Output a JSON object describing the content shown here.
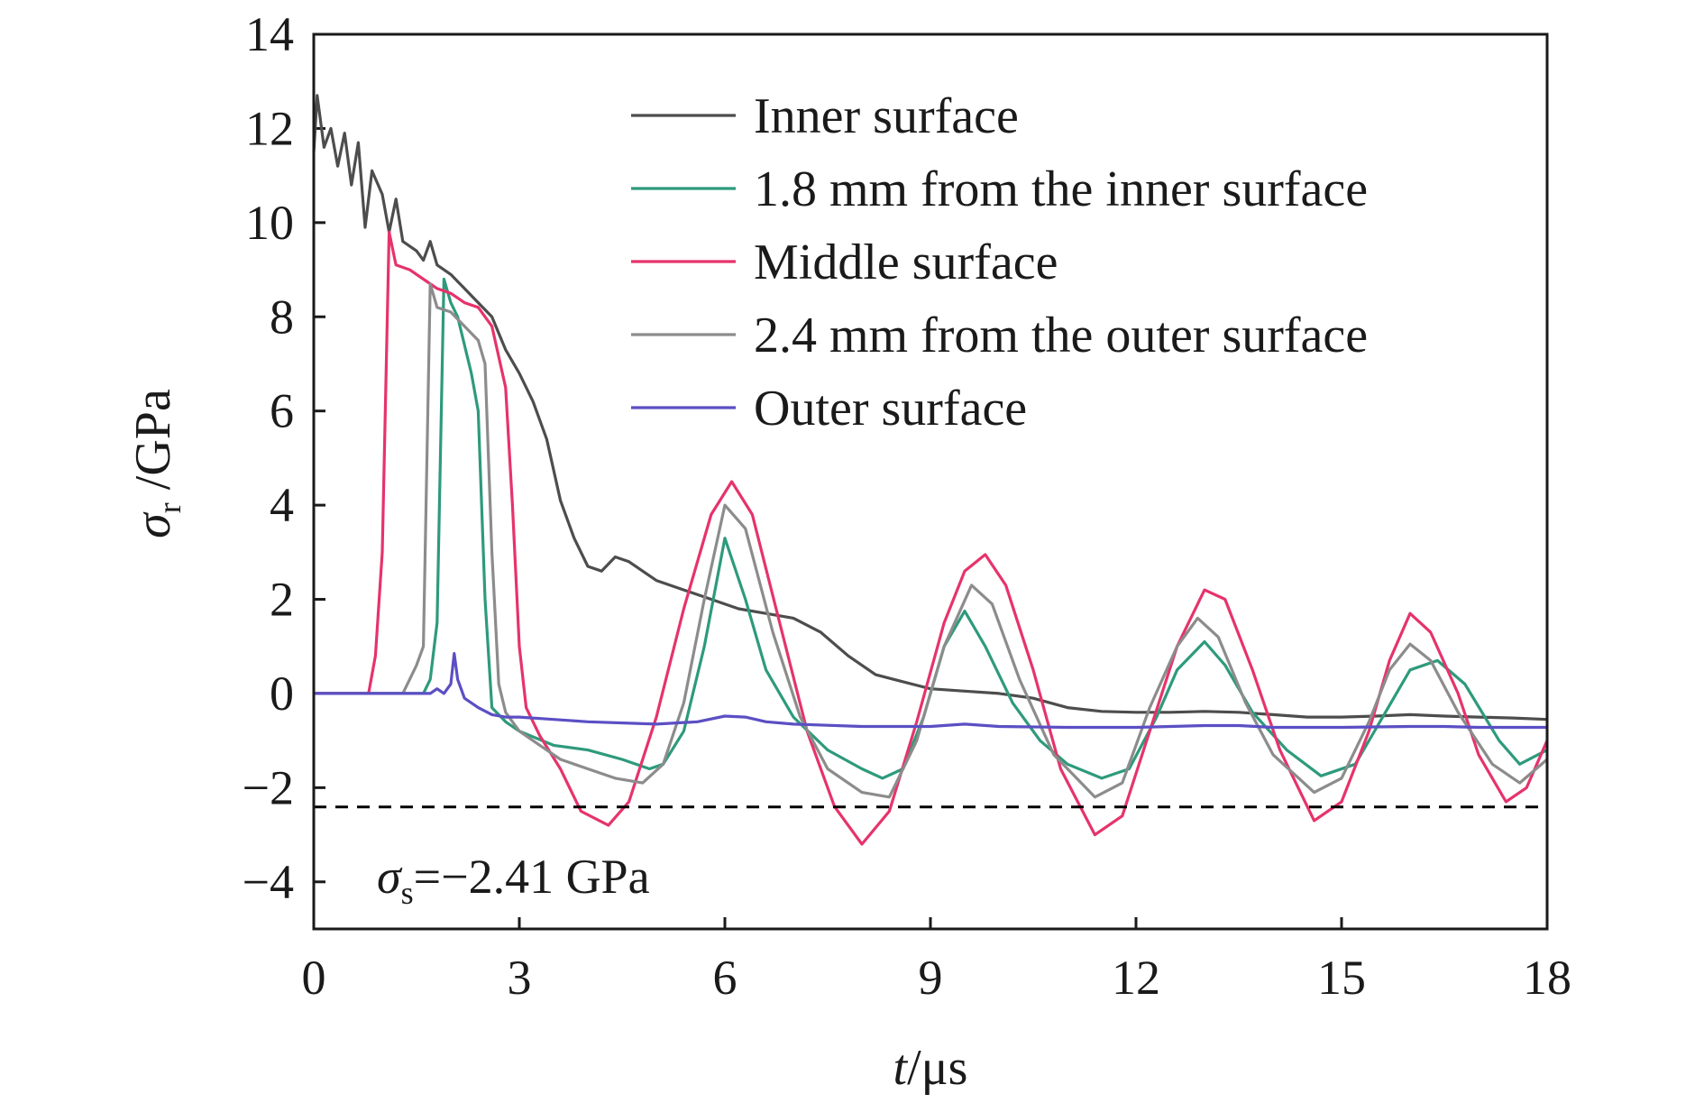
{
  "chart_data": {
    "type": "line",
    "xlabel": {
      "symbol": "t",
      "unit": "/μs"
    },
    "ylabel": {
      "symbol": "σ",
      "subscript": "r",
      "unit": " /GPa"
    },
    "xlim": [
      0,
      18
    ],
    "ylim": [
      -5,
      14
    ],
    "xticks": [
      0,
      3,
      6,
      9,
      12,
      15,
      18
    ],
    "yticks": [
      -4,
      -2,
      0,
      2,
      4,
      6,
      8,
      10,
      12,
      14
    ],
    "ytick_labels": [
      "−4",
      "−2",
      "0",
      "2",
      "4",
      "6",
      "8",
      "10",
      "12",
      "14"
    ],
    "grid": false,
    "legend_position": "top-right",
    "series": [
      {
        "name": "Inner surface",
        "color": "#4d4d4d",
        "x": [
          0,
          0.05,
          0.15,
          0.25,
          0.35,
          0.45,
          0.55,
          0.65,
          0.75,
          0.85,
          1.0,
          1.1,
          1.2,
          1.3,
          1.4,
          1.5,
          1.6,
          1.7,
          1.8,
          1.9,
          2.0,
          2.2,
          2.4,
          2.6,
          2.8,
          3.0,
          3.2,
          3.4,
          3.6,
          3.8,
          4.0,
          4.2,
          4.4,
          4.6,
          4.8,
          5.0,
          5.4,
          5.8,
          6.2,
          6.6,
          7.0,
          7.4,
          7.8,
          8.2,
          8.6,
          9.0,
          9.5,
          10.0,
          10.5,
          11.0,
          11.5,
          12.0,
          12.5,
          13.0,
          13.5,
          14.0,
          14.5,
          15.0,
          15.5,
          16.0,
          16.5,
          17.0,
          17.5,
          18.0
        ],
        "y": [
          11.5,
          12.7,
          11.6,
          12.0,
          11.2,
          11.9,
          10.8,
          11.7,
          9.9,
          11.1,
          10.6,
          9.8,
          10.5,
          9.6,
          9.5,
          9.4,
          9.2,
          9.6,
          9.1,
          9.0,
          8.9,
          8.6,
          8.3,
          8.0,
          7.3,
          6.8,
          6.2,
          5.4,
          4.1,
          3.3,
          2.7,
          2.6,
          2.9,
          2.8,
          2.6,
          2.4,
          2.2,
          2.0,
          1.8,
          1.7,
          1.6,
          1.3,
          0.8,
          0.4,
          0.25,
          0.1,
          0.05,
          0.0,
          -0.1,
          -0.3,
          -0.38,
          -0.4,
          -0.4,
          -0.38,
          -0.4,
          -0.45,
          -0.5,
          -0.5,
          -0.48,
          -0.45,
          -0.48,
          -0.5,
          -0.52,
          -0.55
        ]
      },
      {
        "name": "1.8 mm from the inner surface",
        "color": "#2e9a7c",
        "x": [
          0,
          1.6,
          1.7,
          1.8,
          1.9,
          2.0,
          2.1,
          2.2,
          2.3,
          2.4,
          2.5,
          2.6,
          2.8,
          3.0,
          3.5,
          4.0,
          4.5,
          4.9,
          5.1,
          5.4,
          5.7,
          6.0,
          6.3,
          6.6,
          7.0,
          7.5,
          8.0,
          8.3,
          8.6,
          8.9,
          9.2,
          9.5,
          9.8,
          10.2,
          10.6,
          11.0,
          11.5,
          11.9,
          12.3,
          12.6,
          13.0,
          13.3,
          13.7,
          14.2,
          14.7,
          15.2,
          15.6,
          16.0,
          16.4,
          16.8,
          17.3,
          17.6,
          18.0
        ],
        "y": [
          0,
          0,
          0.3,
          1.5,
          8.8,
          8.3,
          8.0,
          7.4,
          6.8,
          6.0,
          2.0,
          -0.3,
          -0.6,
          -0.8,
          -1.1,
          -1.2,
          -1.4,
          -1.6,
          -1.5,
          -0.8,
          1.0,
          3.3,
          2.0,
          0.5,
          -0.5,
          -1.2,
          -1.6,
          -1.8,
          -1.6,
          -0.5,
          1.0,
          1.75,
          1.0,
          -0.2,
          -1.0,
          -1.5,
          -1.8,
          -1.6,
          -0.5,
          0.5,
          1.1,
          0.6,
          -0.4,
          -1.2,
          -1.75,
          -1.5,
          -0.5,
          0.5,
          0.7,
          0.2,
          -1.0,
          -1.5,
          -1.2
        ]
      },
      {
        "name": "Middle surface",
        "color": "#e6336b",
        "x": [
          0,
          0.8,
          0.9,
          1.0,
          1.1,
          1.2,
          1.4,
          1.6,
          1.8,
          2.0,
          2.2,
          2.4,
          2.6,
          2.8,
          2.9,
          3.0,
          3.1,
          3.3,
          3.6,
          3.9,
          4.3,
          4.6,
          5.0,
          5.4,
          5.8,
          6.1,
          6.4,
          6.8,
          7.2,
          7.6,
          8.0,
          8.4,
          8.8,
          9.2,
          9.5,
          9.8,
          10.1,
          10.5,
          10.9,
          11.4,
          11.8,
          12.2,
          12.6,
          13.0,
          13.3,
          13.7,
          14.1,
          14.6,
          15.0,
          15.4,
          15.7,
          16.0,
          16.3,
          16.7,
          17.0,
          17.4,
          17.7,
          18.0
        ],
        "y": [
          0,
          0,
          0.8,
          3.0,
          9.8,
          9.1,
          9.0,
          8.8,
          8.6,
          8.5,
          8.3,
          8.2,
          7.8,
          6.5,
          4.0,
          1.0,
          -0.3,
          -0.9,
          -1.6,
          -2.5,
          -2.8,
          -2.3,
          -0.5,
          1.8,
          3.8,
          4.5,
          3.8,
          1.5,
          -0.8,
          -2.4,
          -3.2,
          -2.5,
          -0.6,
          1.5,
          2.6,
          2.95,
          2.3,
          0.5,
          -1.6,
          -3.0,
          -2.6,
          -0.8,
          1.0,
          2.2,
          2.0,
          0.5,
          -1.2,
          -2.7,
          -2.3,
          -0.8,
          0.7,
          1.7,
          1.3,
          0.0,
          -1.3,
          -2.3,
          -2.0,
          -1.0
        ]
      },
      {
        "name": "2.4 mm from the outer surface",
        "color": "#8c8c8c",
        "x": [
          0,
          1.3,
          1.4,
          1.5,
          1.6,
          1.7,
          1.8,
          2.0,
          2.2,
          2.4,
          2.5,
          2.6,
          2.7,
          2.8,
          3.0,
          3.3,
          3.6,
          4.0,
          4.4,
          4.8,
          5.1,
          5.4,
          5.7,
          6.0,
          6.3,
          6.7,
          7.1,
          7.5,
          8.0,
          8.4,
          8.8,
          9.2,
          9.6,
          9.9,
          10.3,
          10.8,
          11.4,
          11.8,
          12.2,
          12.6,
          12.9,
          13.2,
          13.6,
          14.0,
          14.6,
          15.0,
          15.4,
          15.7,
          16.0,
          16.3,
          16.7,
          17.2,
          17.6,
          18.0
        ],
        "y": [
          0,
          0,
          0.3,
          0.6,
          1.0,
          8.7,
          8.2,
          8.1,
          7.8,
          7.5,
          7.0,
          3.0,
          0.2,
          -0.4,
          -0.8,
          -1.1,
          -1.4,
          -1.6,
          -1.8,
          -1.9,
          -1.5,
          -0.2,
          2.0,
          4.0,
          3.5,
          1.3,
          -0.5,
          -1.6,
          -2.1,
          -2.2,
          -1.0,
          1.0,
          2.3,
          1.9,
          0.3,
          -1.3,
          -2.2,
          -1.9,
          -0.3,
          1.0,
          1.6,
          1.2,
          -0.2,
          -1.3,
          -2.1,
          -1.8,
          -0.6,
          0.5,
          1.05,
          0.7,
          -0.4,
          -1.5,
          -1.9,
          -1.4
        ]
      },
      {
        "name": "Outer surface",
        "color": "#5b4fc4",
        "x": [
          0,
          1.7,
          1.8,
          1.9,
          2.0,
          2.05,
          2.1,
          2.2,
          2.4,
          2.6,
          2.8,
          3.0,
          3.5,
          4.0,
          5.0,
          5.6,
          6.0,
          6.3,
          6.6,
          7.0,
          8.0,
          9.0,
          9.5,
          10.0,
          11.0,
          12.0,
          13.0,
          13.5,
          14.0,
          15.0,
          16.0,
          16.5,
          17.0,
          18.0
        ],
        "y": [
          0,
          0,
          0.1,
          0.0,
          0.2,
          0.85,
          0.3,
          -0.1,
          -0.3,
          -0.45,
          -0.5,
          -0.5,
          -0.55,
          -0.6,
          -0.65,
          -0.6,
          -0.48,
          -0.5,
          -0.6,
          -0.65,
          -0.7,
          -0.7,
          -0.65,
          -0.7,
          -0.72,
          -0.72,
          -0.68,
          -0.68,
          -0.72,
          -0.72,
          -0.7,
          -0.7,
          -0.72,
          -0.72
        ]
      }
    ],
    "reference_line": {
      "y": -2.41,
      "style": "dashed",
      "color": "#000000"
    },
    "annotation": {
      "symbol": "σ",
      "subscript": "s",
      "text": "=−2.41 GPa"
    }
  }
}
